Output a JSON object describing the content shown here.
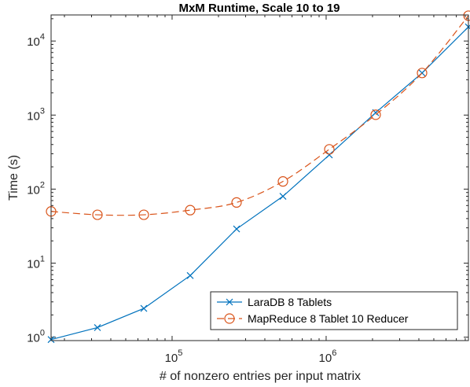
{
  "chart_data": {
    "type": "line",
    "title": "MxM Runtime, Scale 10 to 19",
    "xlabel": "# of nonzero entries per input matrix",
    "ylabel": "Time (s)",
    "x_scale": "log",
    "y_scale": "log",
    "xlim": [
      16384,
      8388608
    ],
    "ylim": [
      0.9,
      22500
    ],
    "x_ticks": [
      {
        "value": 100000,
        "base": "10",
        "exp": "5"
      },
      {
        "value": 1000000,
        "base": "10",
        "exp": "6"
      }
    ],
    "y_ticks": [
      {
        "value": 1,
        "base": "10",
        "exp": "0"
      },
      {
        "value": 10,
        "base": "10",
        "exp": "1"
      },
      {
        "value": 100,
        "base": "10",
        "exp": "2"
      },
      {
        "value": 1000,
        "base": "10",
        "exp": "3"
      },
      {
        "value": 10000,
        "base": "10",
        "exp": "4"
      }
    ],
    "x": [
      16384,
      32768,
      65536,
      131072,
      262144,
      524288,
      1048576,
      2097152,
      4194304,
      8388608
    ],
    "series": [
      {
        "name": "LaraDB 8 Tablets",
        "color": "#0072bd",
        "marker": "x",
        "line": "solid",
        "values": [
          0.93,
          1.35,
          2.45,
          6.8,
          29,
          80,
          290,
          1080,
          3700,
          15500
        ]
      },
      {
        "name": "MapReduce 8 Tablet 10 Reducer",
        "color": "#d95319",
        "marker": "circle",
        "line": "dashed",
        "values": [
          50,
          45,
          45,
          52,
          66,
          127,
          345,
          1010,
          3700,
          22000
        ]
      }
    ],
    "legend_position": "bottom-right",
    "grid": false
  }
}
